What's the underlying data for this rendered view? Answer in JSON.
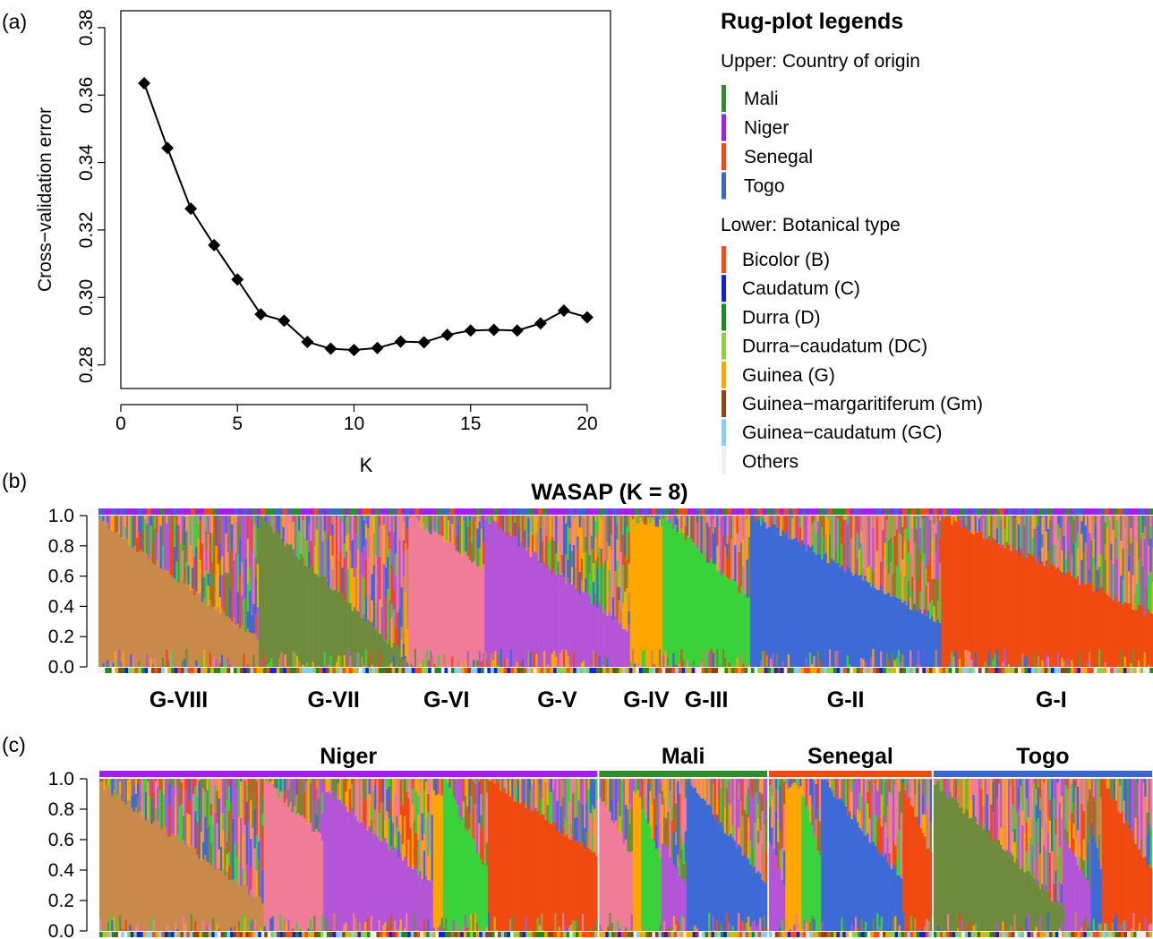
{
  "panel_labels": {
    "a": "(a)",
    "b": "(b)",
    "c": "(c)"
  },
  "legend": {
    "title": "Rug-plot legends",
    "upper_heading": "Upper: Country of origin",
    "upper_items": [
      {
        "label": "Mali",
        "color": "#2e8b2e"
      },
      {
        "label": "Niger",
        "color": "#a020f0"
      },
      {
        "label": "Senegal",
        "color": "#f04a10"
      },
      {
        "label": "Togo",
        "color": "#3a66d0"
      }
    ],
    "lower_heading": "Lower: Botanical type",
    "lower_items": [
      {
        "label": "Bicolor (B)",
        "color": "#ff4a10"
      },
      {
        "label": "Caudatum (C)",
        "color": "#1020e0"
      },
      {
        "label": "Durra (D)",
        "color": "#208a20"
      },
      {
        "label": "Durra−caudatum (DC)",
        "color": "#90d040"
      },
      {
        "label": "Guinea (G)",
        "color": "#ffa500"
      },
      {
        "label": "Guinea−margaritiferum (Gm)",
        "color": "#8b4513"
      },
      {
        "label": "Guinea−caudatum (GC)",
        "color": "#87cefa"
      },
      {
        "label": "Others",
        "color": "#f0f0f0"
      }
    ]
  },
  "chart_data": [
    {
      "type": "line",
      "panel": "(a)",
      "title": "",
      "xlabel": "K",
      "ylabel": "Cross−validation error",
      "xlim": [
        0,
        21
      ],
      "ylim": [
        0.273,
        0.385
      ],
      "xticks": [
        0,
        5,
        10,
        15,
        20
      ],
      "yticks": [
        "0.28",
        "0.30",
        "0.32",
        "0.34",
        "0.36",
        "0.38"
      ],
      "x": [
        1,
        2,
        3,
        4,
        5,
        6,
        7,
        8,
        9,
        10,
        11,
        12,
        13,
        14,
        15,
        16,
        17,
        18,
        19,
        20
      ],
      "y": [
        0.3635,
        0.3443,
        0.3263,
        0.3155,
        0.3053,
        0.295,
        0.2931,
        0.2868,
        0.2848,
        0.2844,
        0.285,
        0.2869,
        0.2867,
        0.2889,
        0.2902,
        0.2904,
        0.2902,
        0.2923,
        0.2961,
        0.2941
      ],
      "marker": "diamond"
    },
    {
      "type": "bar",
      "panel": "(b)",
      "title": "WASAP (K = 8)",
      "ylim": [
        0,
        1
      ],
      "yticks": [
        "0.0",
        "0.2",
        "0.4",
        "0.6",
        "0.8",
        "1.0"
      ],
      "stacked": true,
      "group_labels": [
        "G-VIII",
        "G-VII",
        "G-VI",
        "G-V",
        "G-IV",
        "G-III",
        "G-II",
        "G-I"
      ],
      "group_fractions": [
        0.152,
        0.142,
        0.072,
        0.138,
        0.031,
        0.083,
        0.181,
        0.209
      ],
      "group_colors": [
        "#c8894a",
        "#6e8b3d",
        "#f07c98",
        "#b455d8",
        "#ffa500",
        "#3ad23a",
        "#3d6ad6",
        "#f04a10"
      ],
      "dominant_share": [
        [
          0.97,
          0.18
        ],
        [
          0.99,
          0.05
        ],
        [
          1.0,
          0.65
        ],
        [
          0.99,
          0.25
        ],
        [
          0.98,
          0.95
        ],
        [
          1.0,
          0.45
        ],
        [
          1.0,
          0.3
        ],
        [
          1.0,
          0.32
        ]
      ]
    },
    {
      "type": "bar",
      "panel": "(c)",
      "stacked": true,
      "ylim": [
        0,
        1
      ],
      "yticks": [
        "0.0",
        "0.2",
        "0.4",
        "0.6",
        "0.8",
        "1.0"
      ],
      "country_labels": [
        "Niger",
        "Mali",
        "Senegal",
        "Togo"
      ],
      "country_colors": [
        "#a020f0",
        "#2e8b2e",
        "#f04a10",
        "#3a66d0"
      ],
      "country_fractions": [
        0.474,
        0.161,
        0.156,
        0.209
      ]
    }
  ]
}
